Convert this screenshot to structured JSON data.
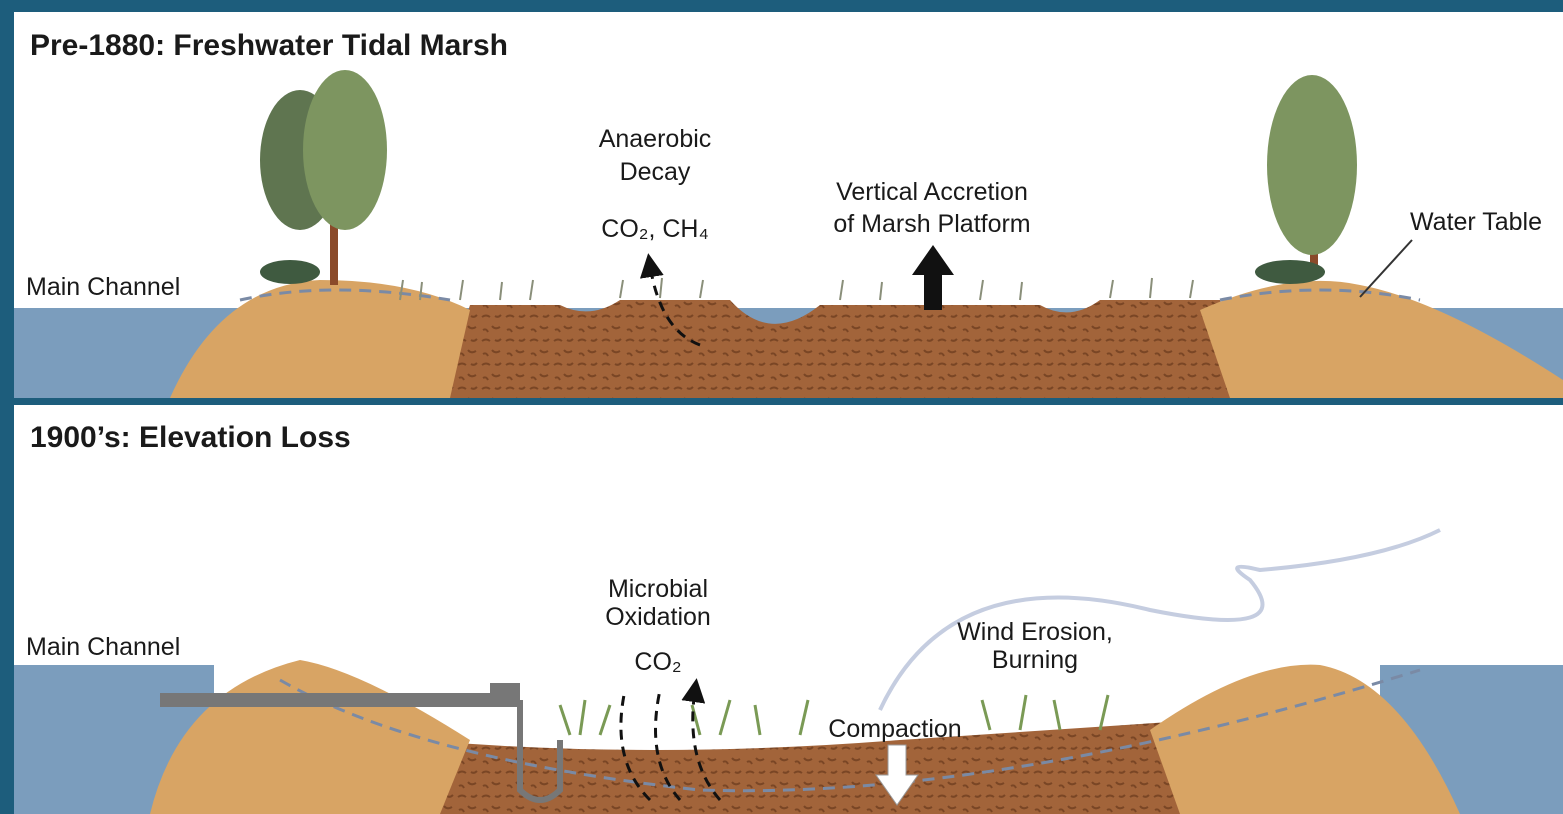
{
  "panels": [
    {
      "title": "Pre-1880: Freshwater Tidal Marsh",
      "labels": [
        {
          "lines": [
            "Main Channel"
          ]
        },
        {
          "lines": [
            "Anaerobic",
            "Decay"
          ]
        },
        {
          "lines": [
            "CO₂, CH₄"
          ]
        },
        {
          "lines": [
            "Vertical Accretion",
            "of Marsh Platform"
          ]
        },
        {
          "lines": [
            "Water Table"
          ]
        }
      ]
    },
    {
      "title": "1900’s: Elevation Loss",
      "labels": [
        {
          "lines": [
            "Main Channel"
          ]
        },
        {
          "lines": [
            "Microbial",
            "Oxidation"
          ]
        },
        {
          "lines": [
            "CO₂"
          ]
        },
        {
          "lines": [
            "Wind Erosion,",
            "Burning"
          ]
        },
        {
          "lines": [
            "Compaction"
          ]
        }
      ]
    }
  ]
}
